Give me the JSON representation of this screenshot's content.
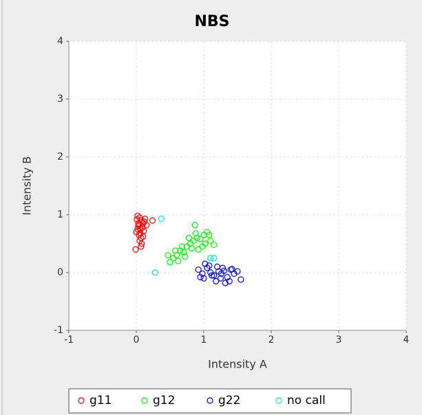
{
  "chart_data": {
    "type": "scatter",
    "title": "NBS",
    "x_label": "Intensity A",
    "y_label": "Intensity B",
    "xlim": [
      -1,
      4
    ],
    "ylim": [
      -1,
      4
    ],
    "xticks": [
      -1,
      0,
      1,
      2,
      3,
      4
    ],
    "yticks": [
      -1,
      0,
      1,
      2,
      3,
      4
    ],
    "grid": true,
    "legend": "bottom",
    "series": [
      {
        "name": "g11",
        "color": "#ff0000",
        "x": [
          0.02,
          0.05,
          0.08,
          0.1,
          0.03,
          0.06,
          0.12,
          0.0,
          0.04,
          0.09,
          0.07,
          0.15,
          0.01,
          0.05,
          0.11,
          0.08,
          0.03,
          0.06,
          0.24,
          0.13,
          0.02,
          0.07,
          0.1,
          0.04,
          -0.01
        ],
        "values": [
          0.98,
          0.95,
          0.9,
          0.85,
          0.8,
          0.75,
          0.88,
          0.7,
          0.65,
          0.78,
          0.6,
          0.82,
          0.92,
          0.55,
          0.72,
          0.5,
          0.85,
          0.68,
          0.9,
          0.93,
          0.75,
          0.45,
          0.62,
          0.82,
          0.4
        ]
      },
      {
        "name": "g12",
        "color": "#00ff00",
        "x": [
          0.5,
          0.55,
          0.6,
          0.65,
          0.7,
          0.75,
          0.8,
          0.85,
          0.9,
          0.95,
          1.0,
          1.05,
          1.1,
          1.15,
          0.62,
          0.72,
          0.82,
          0.92,
          1.02,
          0.58,
          0.68,
          0.78,
          0.88,
          0.98,
          0.87,
          0.47,
          1.08
        ],
        "values": [
          0.18,
          0.25,
          0.3,
          0.38,
          0.35,
          0.45,
          0.5,
          0.55,
          0.6,
          0.58,
          0.65,
          0.7,
          0.55,
          0.48,
          0.2,
          0.28,
          0.42,
          0.4,
          0.5,
          0.38,
          0.45,
          0.6,
          0.68,
          0.45,
          0.82,
          0.3,
          0.65
        ]
      },
      {
        "name": "g22",
        "color": "#0000ff",
        "x": [
          0.92,
          0.98,
          1.05,
          1.1,
          1.15,
          1.2,
          1.25,
          1.3,
          1.35,
          1.4,
          1.45,
          1.5,
          1.55,
          1.0,
          1.08,
          1.18,
          1.28,
          1.38,
          1.12,
          1.22,
          1.32,
          1.42,
          0.95,
          1.02,
          1.26
        ],
        "values": [
          0.05,
          -0.02,
          0.08,
          0.0,
          -0.05,
          0.1,
          -0.1,
          0.03,
          -0.08,
          0.05,
          -0.02,
          0.02,
          -0.12,
          -0.1,
          0.12,
          -0.15,
          0.08,
          -0.15,
          -0.05,
          0.02,
          -0.18,
          0.06,
          -0.08,
          0.15,
          -0.02
        ]
      },
      {
        "name": "no call",
        "color": "#00e5ee",
        "x": [
          0.37,
          0.28,
          1.1,
          1.15
        ],
        "values": [
          0.93,
          0.0,
          0.25,
          0.25
        ]
      }
    ]
  }
}
